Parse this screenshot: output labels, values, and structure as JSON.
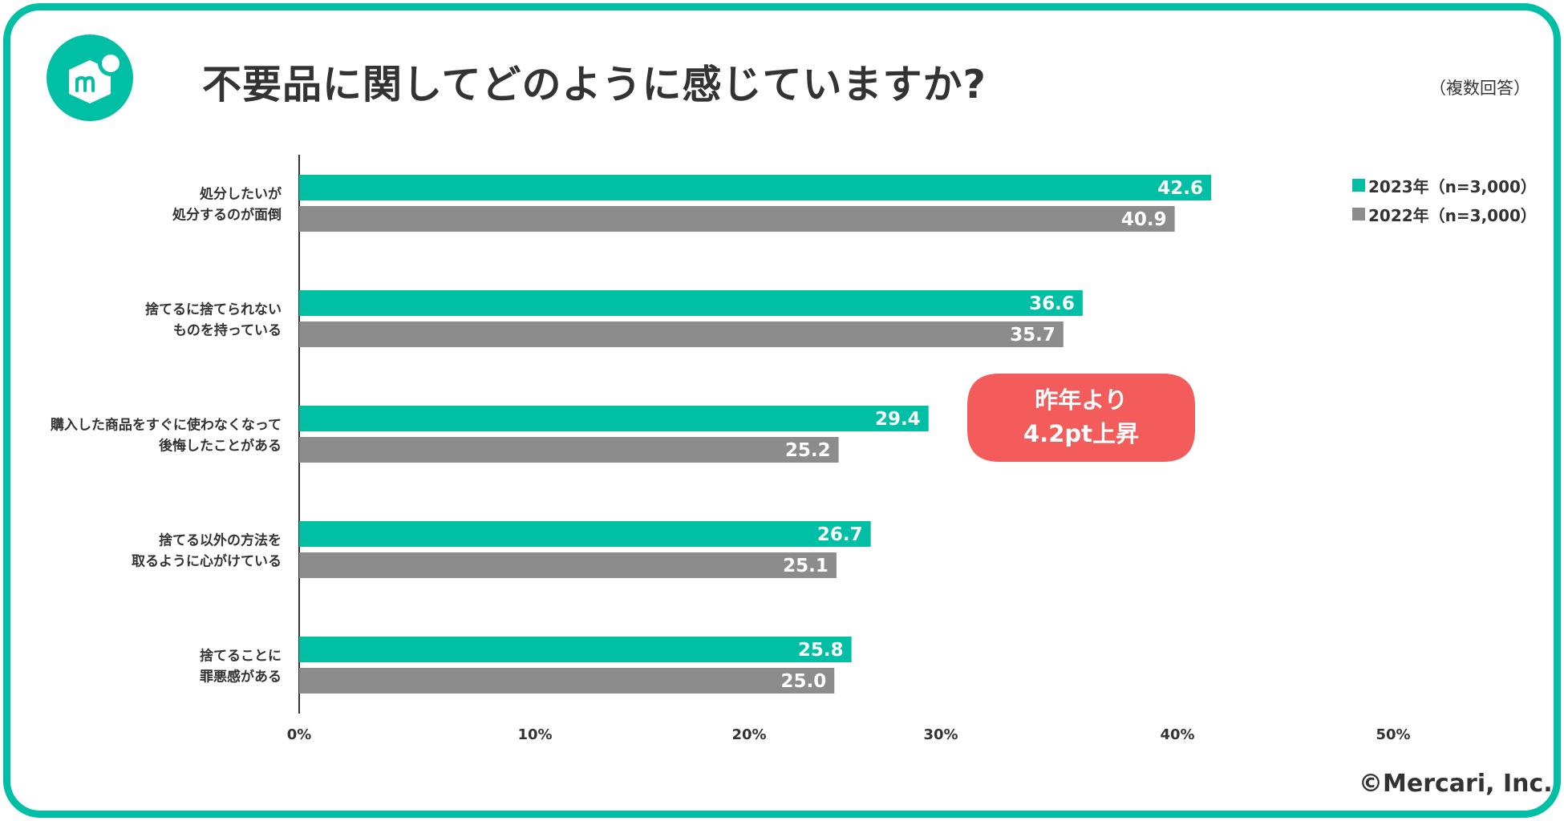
{
  "header": {
    "title": "不要品に関してどのように感じていますか?",
    "note": "（複数回答）"
  },
  "legend": [
    {
      "label": "2023年（n=3,000）",
      "color": "#00BFA5"
    },
    {
      "label": "2022年（n=3,000）",
      "color": "#8C8C8C"
    }
  ],
  "callout": {
    "line1": "昨年より",
    "line2": "4.2pt上昇",
    "color": "#F45B5B"
  },
  "footer": {
    "copyright": "©Mercari, Inc."
  },
  "chart_data": {
    "type": "bar",
    "orientation": "horizontal",
    "title": "不要品に関してどのように感じていますか?",
    "xlabel": "",
    "ylabel": "",
    "xlim": [
      0,
      50
    ],
    "xticks": [
      "0%",
      "10%",
      "20%",
      "30%",
      "40%",
      "50%"
    ],
    "grid": false,
    "legend_position": "top-right",
    "categories": [
      [
        "処分したいが",
        "処分するのが面倒"
      ],
      [
        "捨てるに捨てられない",
        "ものを持っている"
      ],
      [
        "購入した商品をすぐに使わなくなって",
        "後悔したことがある"
      ],
      [
        "捨てる以外の方法を",
        "取るように心がけている"
      ],
      [
        "捨てることに",
        "罪悪感がある"
      ]
    ],
    "series": [
      {
        "name": "2023年（n=3,000）",
        "color": "#00BFA5",
        "values": [
          42.6,
          36.6,
          29.4,
          26.7,
          25.8
        ]
      },
      {
        "name": "2022年（n=3,000）",
        "color": "#8C8C8C",
        "values": [
          40.9,
          35.7,
          25.2,
          25.1,
          25.0
        ]
      }
    ]
  }
}
